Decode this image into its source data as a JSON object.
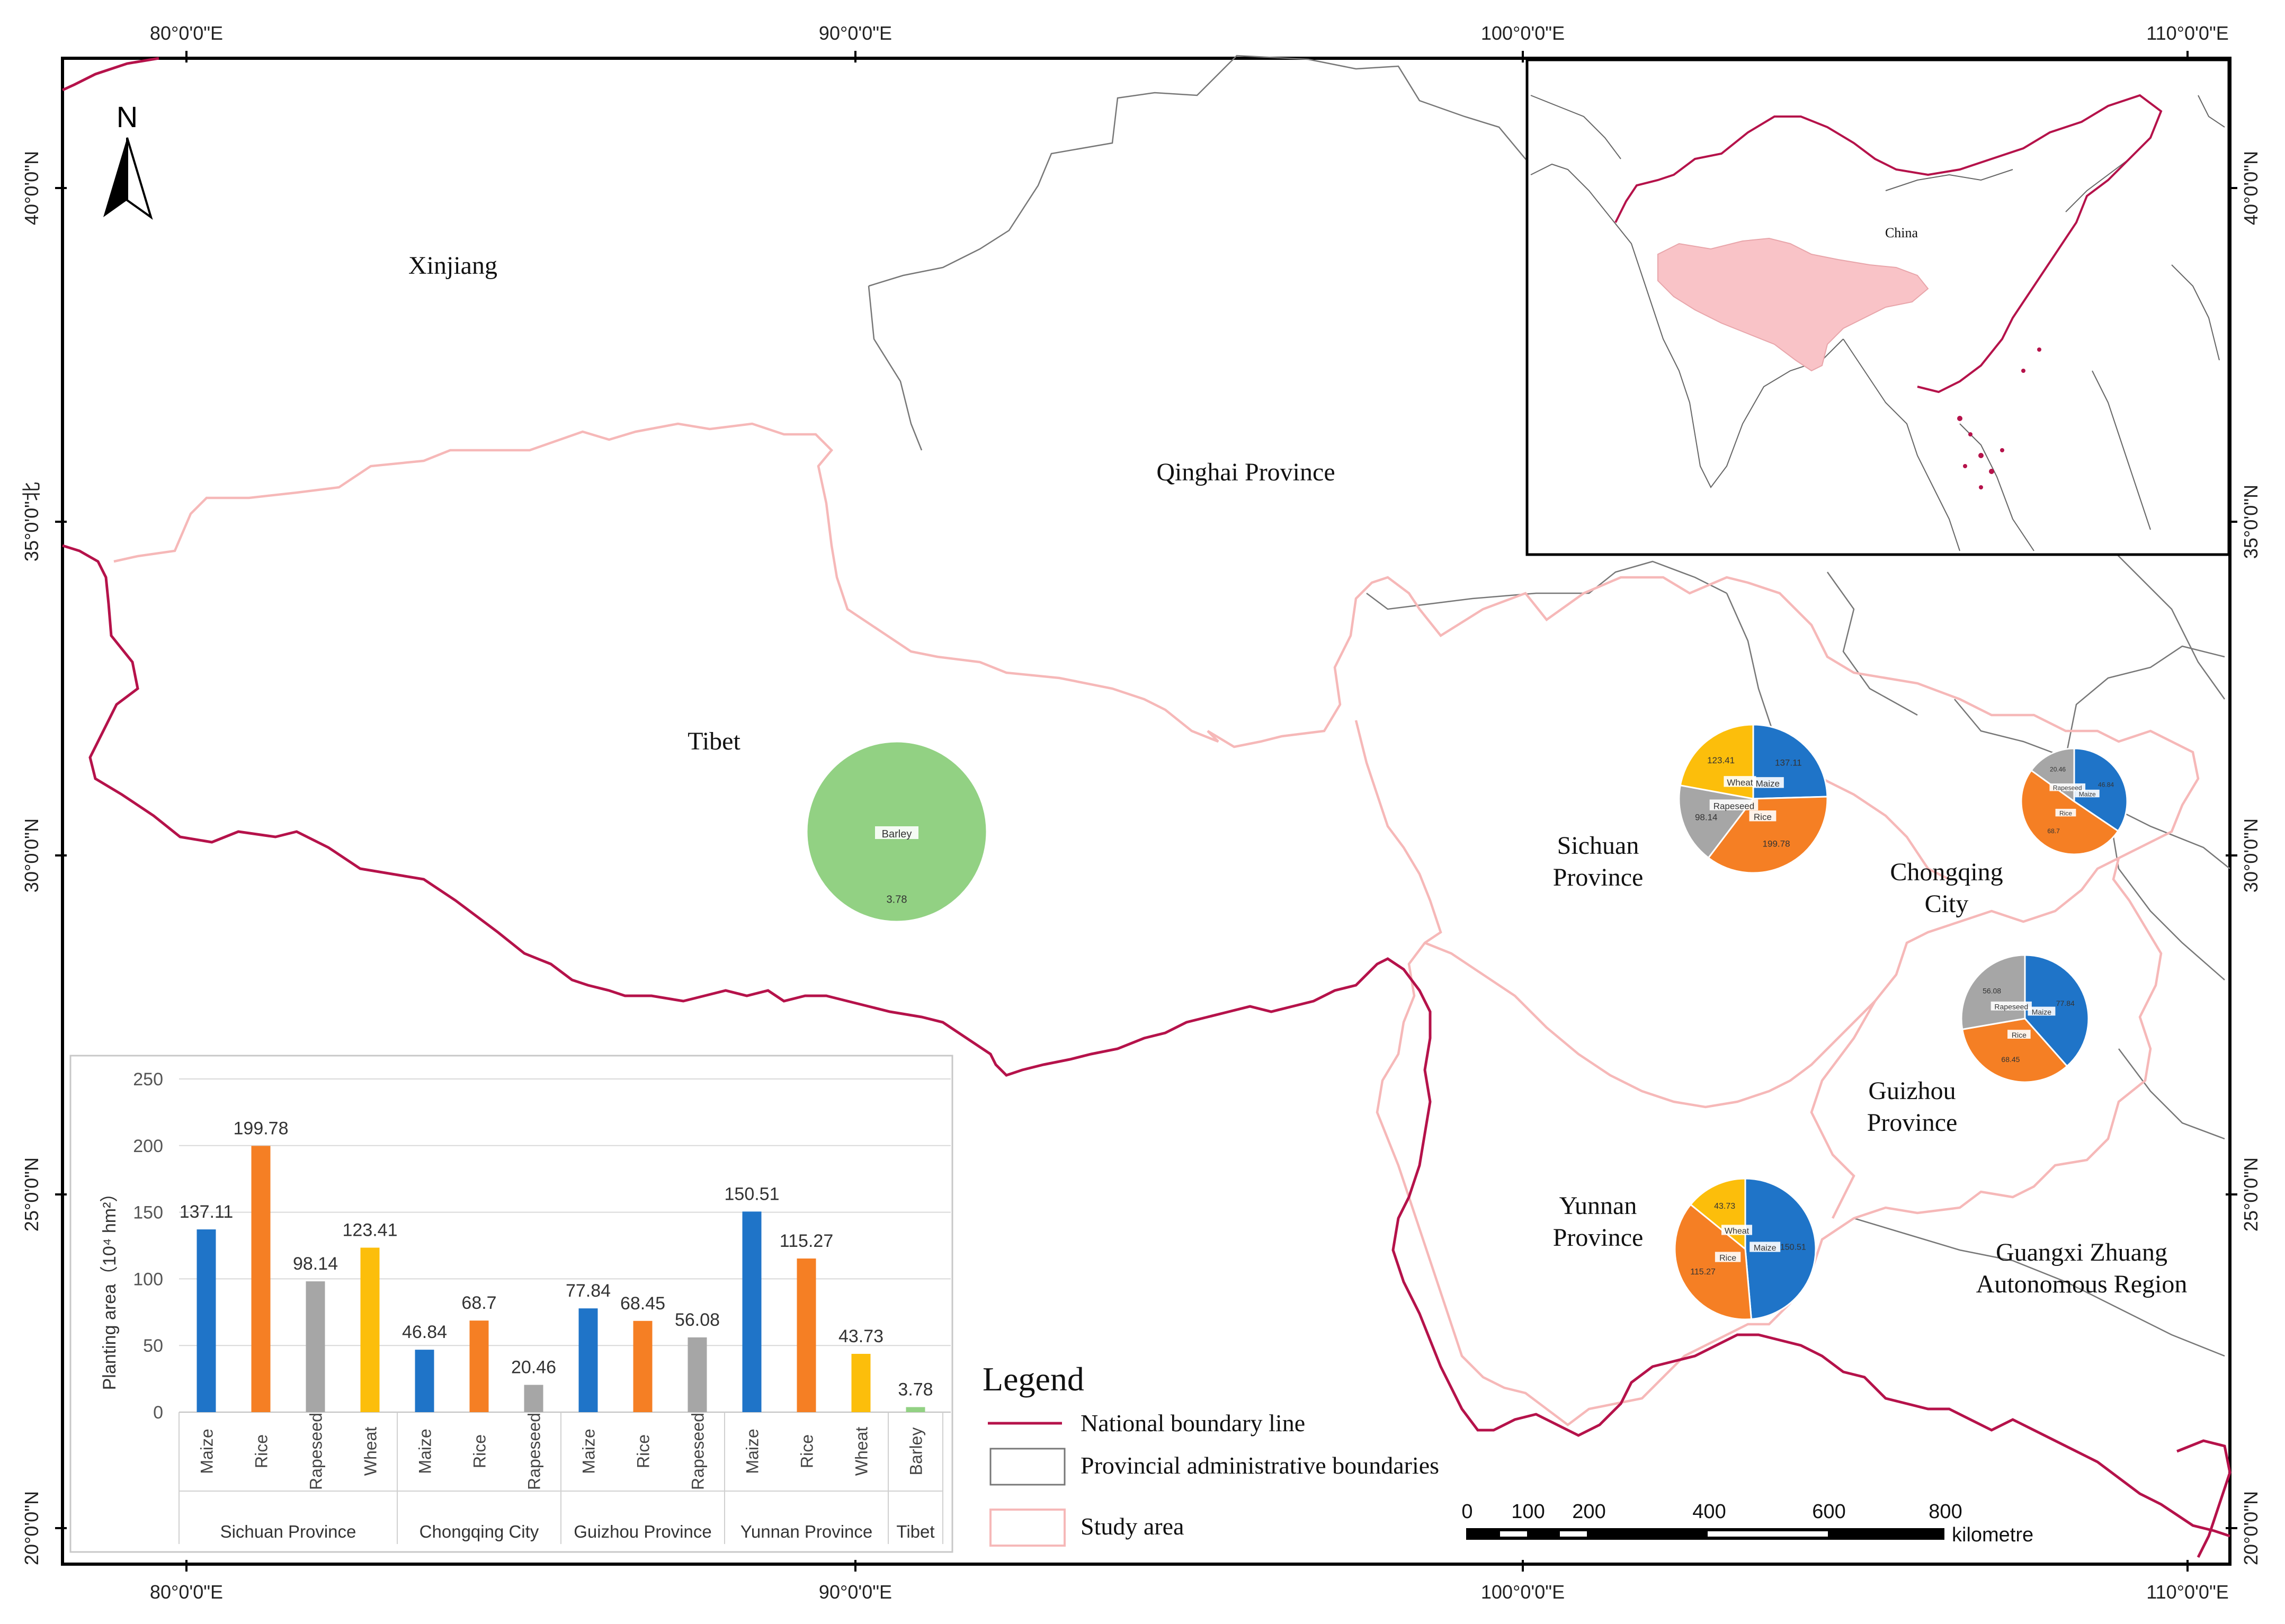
{
  "grid": {
    "top_lon_labels": [
      "80°0'0\"E",
      "90°0'0\"E",
      "100°0'0\"E",
      "110°0'0\"E"
    ],
    "bottom_lon_labels": [
      "80°0'0\"E",
      "90°0'0\"E",
      "100°0'0\"E",
      "110°0'0\"E"
    ],
    "left_lat_labels": [
      "40°0'0\"N",
      "35°0'0\"北",
      "30°0'0\"N",
      "25°0'0\"N",
      "20°0'0\"N"
    ],
    "right_lat_labels": [
      "40°0'0\"N",
      "35°0'0\"N",
      "30°0'0\"N",
      "25°0'0\"N",
      "20°0'0\"N"
    ]
  },
  "north_arrow": {
    "letter": "N",
    "icon": "north-arrow-icon"
  },
  "regions": {
    "xinjiang": "Xinjiang",
    "qinghai": "Qinghai Province",
    "tibet": "Tibet",
    "sichuan": [
      "Sichuan",
      "Province"
    ],
    "chongqing": [
      "Chongqing",
      "City"
    ],
    "guizhou": [
      "Guizhou",
      "Province"
    ],
    "yunnan": [
      "Yunnan",
      "Province"
    ],
    "guangxi": [
      "Guangxi Zhuang",
      "Autonomous Region"
    ]
  },
  "inset": {
    "label": "China"
  },
  "legend": {
    "title": "Legend",
    "items": [
      "National boundary line",
      "Provincial administrative boundaries",
      "Study area"
    ]
  },
  "scalebar": {
    "ticks": [
      "0",
      "100",
      "200",
      "400",
      "600",
      "800"
    ],
    "unit": "kilometre"
  },
  "colors": {
    "maize": "#1f74c8",
    "rice": "#f57f24",
    "rapeseed": "#a6a6a6",
    "wheat": "#fcbe0b",
    "barley": "#92d183",
    "national_boundary": "#b5124a",
    "study_area": "#f6b8b8",
    "province": "#777777",
    "inset_fill": "#f9c3c7"
  },
  "chart_data": [
    {
      "type": "bar",
      "ylabel": "Planting area（10⁴ hm²）",
      "ylim": [
        0,
        250
      ],
      "yticks": [
        "0",
        "50",
        "100",
        "150",
        "200",
        "250"
      ],
      "groups": [
        {
          "name": "Sichuan Province",
          "categories": [
            "Maize",
            "Rice",
            "Rapeseed",
            "Wheat"
          ],
          "values": [
            137.11,
            199.78,
            98.14,
            123.41
          ],
          "labels": [
            "137.11",
            "199.78",
            "98.14",
            "123.41"
          ]
        },
        {
          "name": "Chongqing City",
          "categories": [
            "Maize",
            "Rice",
            "Rapeseed"
          ],
          "values": [
            46.84,
            68.7,
            20.46
          ],
          "labels": [
            "46.84",
            "68.7",
            "20.46"
          ]
        },
        {
          "name": "Guizhou Province",
          "categories": [
            "Maize",
            "Rice",
            "Rapeseed"
          ],
          "values": [
            77.84,
            68.45,
            56.08
          ],
          "labels": [
            "77.84",
            "68.45",
            "56.08"
          ]
        },
        {
          "name": "Yunnan Province",
          "categories": [
            "Maize",
            "Rice",
            "Wheat"
          ],
          "values": [
            150.51,
            115.27,
            43.73
          ],
          "labels": [
            "150.51",
            "115.27",
            "43.73"
          ]
        },
        {
          "name": "Tibet",
          "categories": [
            "Barley"
          ],
          "values": [
            3.78
          ],
          "labels": [
            "3.78"
          ]
        }
      ]
    },
    {
      "type": "pie",
      "region": "Tibet",
      "slices": [
        {
          "name": "Barley",
          "value": 3.78,
          "label": "3.78"
        }
      ]
    },
    {
      "type": "pie",
      "region": "Sichuan Province",
      "slices": [
        {
          "name": "Maize",
          "value": 137.11,
          "label": "137.11"
        },
        {
          "name": "Rice",
          "value": 199.78,
          "label": "199.78"
        },
        {
          "name": "Rapeseed",
          "value": 98.14,
          "label": "98.14"
        },
        {
          "name": "Wheat",
          "value": 123.41,
          "label": "123.41"
        }
      ]
    },
    {
      "type": "pie",
      "region": "Chongqing City",
      "slices": [
        {
          "name": "Maize",
          "value": 46.84,
          "label": "46.84"
        },
        {
          "name": "Rice",
          "value": 68.7,
          "label": "68.7"
        },
        {
          "name": "Rapeseed",
          "value": 20.46,
          "label": "20.46"
        }
      ]
    },
    {
      "type": "pie",
      "region": "Guizhou Province",
      "slices": [
        {
          "name": "Maize",
          "value": 77.84,
          "label": "77.84"
        },
        {
          "name": "Rice",
          "value": 68.45,
          "label": "68.45"
        },
        {
          "name": "Rapeseed",
          "value": 56.08,
          "label": "56.08"
        }
      ]
    },
    {
      "type": "pie",
      "region": "Yunnan Province",
      "slices": [
        {
          "name": "Maize",
          "value": 150.51,
          "label": "150.51"
        },
        {
          "name": "Rice",
          "value": 115.27,
          "label": "115.27"
        },
        {
          "name": "Wheat",
          "value": 43.73,
          "label": "43.73"
        }
      ]
    }
  ]
}
